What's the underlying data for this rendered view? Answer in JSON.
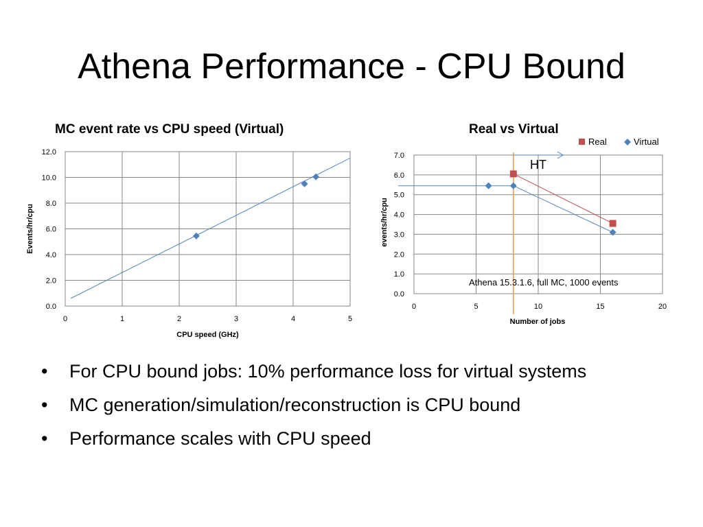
{
  "slide": {
    "title": "Athena Performance - CPU Bound",
    "bullets": [
      "For CPU bound jobs: 10% performance loss for virtual systems",
      "MC generation/simulation/reconstruction is CPU bound",
      "Performance scales with CPU speed"
    ]
  },
  "colors": {
    "virtual": "#4F81BD",
    "real": "#C0504D",
    "ht_line": "#F79646",
    "grid": "#868686"
  },
  "chart_data": [
    {
      "type": "scatter",
      "title": "MC event rate vs CPU speed (Virtual)",
      "xlabel": "CPU speed (GHz)",
      "ylabel": "Events/hr/cpu",
      "xlim": [
        0,
        5
      ],
      "ylim": [
        0,
        12
      ],
      "x_ticks": [
        "0",
        "1",
        "2",
        "3",
        "4",
        "5"
      ],
      "y_ticks": [
        "0.0",
        "2.0",
        "4.0",
        "6.0",
        "8.0",
        "10.0",
        "12.0"
      ],
      "grid": true,
      "series": [
        {
          "x": [
            2.3,
            4.2,
            4.4
          ],
          "y": [
            5.45,
            9.5,
            10.05
          ]
        }
      ],
      "trendline": {
        "x": [
          0.1,
          5.0
        ],
        "y": [
          0.6,
          11.5
        ]
      }
    },
    {
      "type": "line",
      "title": "Real vs Virtual",
      "xlabel": "Number of jobs",
      "ylabel": "events/hr/cpu",
      "xlim": [
        0,
        20
      ],
      "ylim": [
        0,
        7
      ],
      "x_ticks": [
        "0",
        "5",
        "10",
        "15",
        "20"
      ],
      "y_ticks": [
        "0.0",
        "1.0",
        "2.0",
        "3.0",
        "4.0",
        "5.0",
        "6.0",
        "7.0"
      ],
      "grid": true,
      "legend": "top-right",
      "series": [
        {
          "name": "Real",
          "x": [
            8,
            16
          ],
          "y": [
            6.05,
            3.55
          ]
        },
        {
          "name": "Virtual",
          "x": [
            6,
            8,
            16
          ],
          "y": [
            5.45,
            5.45,
            3.1
          ]
        }
      ],
      "virtual_extension": {
        "x": [
          0,
          6
        ],
        "y": [
          5.45,
          5.45
        ]
      },
      "ht_marker": {
        "x": 8,
        "label": "HT"
      },
      "annotation": "Athena 15.3.1.6, full MC, 1000 events"
    }
  ]
}
